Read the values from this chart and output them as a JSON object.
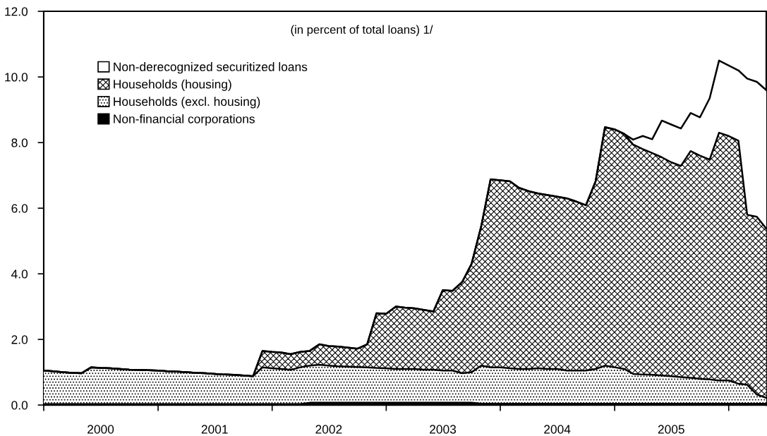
{
  "chart_data": {
    "type": "area",
    "stacked": true,
    "title": "(in percent of total loans) 1/",
    "x": [
      "2000-01",
      "2000-02",
      "2000-03",
      "2000-04",
      "2000-05",
      "2000-06",
      "2000-07",
      "2000-08",
      "2000-09",
      "2000-10",
      "2000-11",
      "2000-12",
      "2001-01",
      "2001-02",
      "2001-03",
      "2001-04",
      "2001-05",
      "2001-06",
      "2001-07",
      "2001-08",
      "2001-09",
      "2001-10",
      "2001-11",
      "2001-12",
      "2002-01",
      "2002-02",
      "2002-03",
      "2002-04",
      "2002-05",
      "2002-06",
      "2002-07",
      "2002-08",
      "2002-09",
      "2002-10",
      "2002-11",
      "2002-12",
      "2003-01",
      "2003-02",
      "2003-03",
      "2003-04",
      "2003-05",
      "2003-06",
      "2003-07",
      "2003-08",
      "2003-09",
      "2003-10",
      "2003-11",
      "2003-12",
      "2004-01",
      "2004-02",
      "2004-03",
      "2004-04",
      "2004-05",
      "2004-06",
      "2004-07",
      "2004-08",
      "2004-09",
      "2004-10",
      "2004-11",
      "2004-12",
      "2005-01",
      "2005-02",
      "2005-03",
      "2005-04",
      "2005-05",
      "2005-06",
      "2005-07",
      "2005-08",
      "2005-09",
      "2005-10",
      "2005-11",
      "2005-12",
      "2006-01",
      "2006-02",
      "2006-03",
      "2006-04",
      "2006-05"
    ],
    "series": [
      {
        "name": "Non-financial corporations",
        "color": "#000000",
        "values": [
          0.03,
          0.03,
          0.03,
          0.03,
          0.03,
          0.03,
          0.03,
          0.03,
          0.03,
          0.03,
          0.03,
          0.03,
          0.03,
          0.03,
          0.03,
          0.03,
          0.03,
          0.03,
          0.03,
          0.03,
          0.03,
          0.03,
          0.03,
          0.03,
          0.03,
          0.03,
          0.03,
          0.03,
          0.07,
          0.07,
          0.07,
          0.07,
          0.07,
          0.07,
          0.07,
          0.07,
          0.07,
          0.07,
          0.07,
          0.07,
          0.07,
          0.07,
          0.07,
          0.07,
          0.07,
          0.07,
          0.04,
          0.04,
          0.04,
          0.04,
          0.04,
          0.04,
          0.04,
          0.04,
          0.04,
          0.04,
          0.04,
          0.04,
          0.04,
          0.04,
          0.04,
          0.04,
          0.04,
          0.04,
          0.04,
          0.04,
          0.04,
          0.04,
          0.04,
          0.04,
          0.04,
          0.04,
          0.04,
          0.04,
          0.04,
          0.04,
          0.04
        ]
      },
      {
        "name": "Households (excl. housing)",
        "color": "#ffffff",
        "values": [
          1.02,
          1.0,
          0.97,
          0.95,
          0.94,
          1.12,
          1.1,
          1.09,
          1.07,
          1.05,
          1.04,
          1.03,
          1.02,
          1.0,
          0.99,
          0.97,
          0.95,
          0.94,
          0.92,
          0.9,
          0.89,
          0.87,
          0.85,
          1.12,
          1.09,
          1.07,
          1.04,
          1.12,
          1.13,
          1.16,
          1.13,
          1.11,
          1.1,
          1.09,
          1.08,
          1.06,
          1.05,
          1.03,
          1.03,
          1.03,
          1.01,
          1.01,
          0.98,
          0.98,
          0.9,
          0.93,
          1.16,
          1.11,
          1.11,
          1.08,
          1.06,
          1.06,
          1.08,
          1.06,
          1.06,
          1.01,
          1.01,
          1.01,
          1.06,
          1.16,
          1.11,
          1.06,
          0.91,
          0.89,
          0.88,
          0.86,
          0.84,
          0.81,
          0.79,
          0.76,
          0.74,
          0.71,
          0.71,
          0.61,
          0.58,
          0.28,
          0.18
        ]
      },
      {
        "name": "Households (housing)",
        "color": "#ffffff",
        "values": [
          0,
          0,
          0,
          0,
          0,
          0,
          0,
          0,
          0,
          0,
          0,
          0,
          0,
          0,
          0,
          0,
          0,
          0,
          0,
          0,
          0,
          0,
          0,
          0.5,
          0.5,
          0.5,
          0.48,
          0.47,
          0.45,
          0.62,
          0.6,
          0.6,
          0.58,
          0.56,
          0.7,
          1.67,
          1.66,
          1.9,
          1.87,
          1.85,
          1.82,
          1.77,
          2.45,
          2.43,
          2.78,
          3.3,
          4.25,
          5.73,
          5.7,
          5.7,
          5.52,
          5.42,
          5.33,
          5.3,
          5.25,
          5.25,
          5.15,
          5.04,
          5.72,
          7.27,
          7.25,
          7.16,
          6.99,
          6.87,
          6.76,
          6.65,
          6.52,
          6.44,
          6.91,
          6.8,
          6.7,
          7.55,
          7.45,
          7.41,
          5.18,
          5.42,
          5.16
        ]
      },
      {
        "name": "Non-derecognized securitized loans",
        "color": "#ffffff",
        "values": [
          0,
          0,
          0,
          0,
          0,
          0,
          0,
          0,
          0,
          0,
          0,
          0,
          0,
          0,
          0,
          0,
          0,
          0,
          0,
          0,
          0,
          0,
          0,
          0,
          0,
          0,
          0,
          0,
          0,
          0,
          0,
          0,
          0,
          0,
          0,
          0,
          0,
          0,
          0,
          0,
          0,
          0,
          0,
          0,
          0,
          0,
          0,
          0,
          0,
          0,
          0,
          0,
          0,
          0,
          0,
          0,
          0,
          0,
          0,
          0,
          0,
          0,
          0.15,
          0.4,
          0.42,
          1.12,
          1.15,
          1.14,
          1.16,
          1.17,
          1.87,
          2.2,
          2.15,
          2.14,
          4.15,
          4.11,
          4.22
        ]
      }
    ],
    "xlim": [
      "2000-01",
      "2006-05"
    ],
    "xticks": [
      {
        "value": "2000-01",
        "label": null
      },
      {
        "value": "2000-07",
        "label": "2000"
      },
      {
        "value": "2001-01",
        "label": null
      },
      {
        "value": "2001-07",
        "label": "2001"
      },
      {
        "value": "2002-01",
        "label": null
      },
      {
        "value": "2002-07",
        "label": "2002"
      },
      {
        "value": "2003-01",
        "label": null
      },
      {
        "value": "2003-07",
        "label": "2003"
      },
      {
        "value": "2004-01",
        "label": null
      },
      {
        "value": "2004-07",
        "label": "2004"
      },
      {
        "value": "2005-01",
        "label": null
      },
      {
        "value": "2005-07",
        "label": "2005"
      },
      {
        "value": "2006-01",
        "label": null
      }
    ],
    "ylim": [
      0,
      12
    ],
    "yticks": [
      {
        "value": 0,
        "label": "0.0"
      },
      {
        "value": 2,
        "label": "2.0"
      },
      {
        "value": 4,
        "label": "4.0"
      },
      {
        "value": 6,
        "label": "6.0"
      },
      {
        "value": 8,
        "label": "8.0"
      },
      {
        "value": 10,
        "label": "10.0"
      },
      {
        "value": 12,
        "label": "12.0"
      }
    ],
    "grid": false,
    "legend": "top left"
  }
}
